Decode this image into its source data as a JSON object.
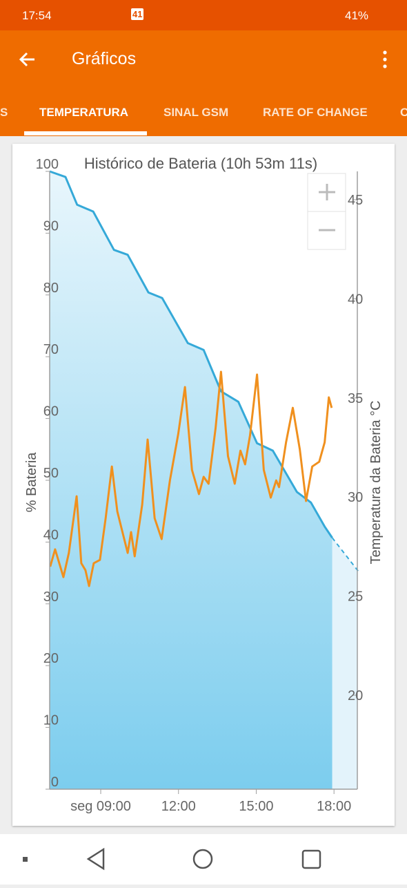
{
  "status_bar": {
    "time": "17:54",
    "badge": "41",
    "battery": "41%"
  },
  "app_bar": {
    "title": "Gráficos"
  },
  "tabs": [
    "S",
    "TEMPERATURA",
    "SINAL GSM",
    "RATE OF CHANGE",
    "C"
  ],
  "chart_data": {
    "type": "line",
    "title": "Histórico de Bateria (10h 53m 11s)",
    "y_label": "% Bateria",
    "y2_label": "Temperatura da Bateria °C",
    "xlim": [
      7.03,
      18.9
    ],
    "xticks": [
      {
        "value": 9,
        "label": "seg 09:00"
      },
      {
        "value": 12,
        "label": "12:00"
      },
      {
        "value": 15,
        "label": "15:00"
      },
      {
        "value": 18,
        "label": "18:00"
      }
    ],
    "ylim": [
      0,
      100
    ],
    "yticks": [
      0,
      10,
      20,
      30,
      40,
      50,
      60,
      70,
      80,
      90,
      100
    ],
    "y2lim": [
      15.26,
      46.43
    ],
    "y2ticks": [
      20,
      25,
      30,
      35,
      40,
      45
    ],
    "series": [
      {
        "color": "#35a9d8",
        "fill": true,
        "x": [
          7.03,
          7.64,
          8.09,
          8.71,
          9.51,
          10.04,
          10.84,
          11.37,
          12.36,
          12.97,
          13.64,
          14.31,
          15.03,
          15.64,
          16.57,
          17.11,
          17.64,
          17.93
        ],
        "values": [
          100,
          99.1,
          94.6,
          93.5,
          87.3,
          86.5,
          80.4,
          79.5,
          72.2,
          71.1,
          64.4,
          62.7,
          56,
          54.8,
          48.1,
          46.4,
          42.5,
          40.7
        ]
      },
      {
        "color": "#f0901e",
        "axis": "y2",
        "x": [
          7.05,
          7.24,
          7.56,
          7.77,
          7.88,
          8.07,
          8.25,
          8.41,
          8.55,
          8.73,
          8.97,
          9.19,
          9.43,
          9.64,
          10.04,
          10.17,
          10.31,
          10.6,
          10.81,
          11.08,
          11.35,
          11.67,
          11.99,
          12.25,
          12.52,
          12.79,
          12.97,
          13.16,
          13.43,
          13.64,
          13.91,
          14.17,
          14.39,
          14.57,
          14.76,
          15.03,
          15.29,
          15.56,
          15.77,
          15.88,
          16.15,
          16.41,
          16.68,
          16.92,
          17.16,
          17.43,
          17.64,
          17.8,
          17.91
        ],
        "values": [
          26.49,
          27.36,
          25.96,
          27.18,
          28.23,
          30.04,
          26.66,
          26.31,
          25.51,
          26.66,
          26.83,
          28.93,
          31.54,
          29.27,
          27.18,
          28.23,
          27.01,
          29.62,
          32.9,
          28.93,
          27.88,
          30.84,
          33.18,
          35.55,
          31.37,
          30.15,
          31.02,
          30.67,
          33.46,
          36.32,
          32.06,
          30.67,
          32.34,
          31.65,
          33.11,
          36.18,
          31.37,
          29.97,
          30.84,
          30.5,
          32.76,
          34.5,
          32.41,
          29.8,
          31.54,
          31.78,
          32.76,
          35.03,
          34.5
        ]
      }
    ],
    "projection": {
      "color": "#35a9d8",
      "x": [
        17.93,
        18.97
      ],
      "values": [
        40.7,
        35.1
      ]
    }
  }
}
